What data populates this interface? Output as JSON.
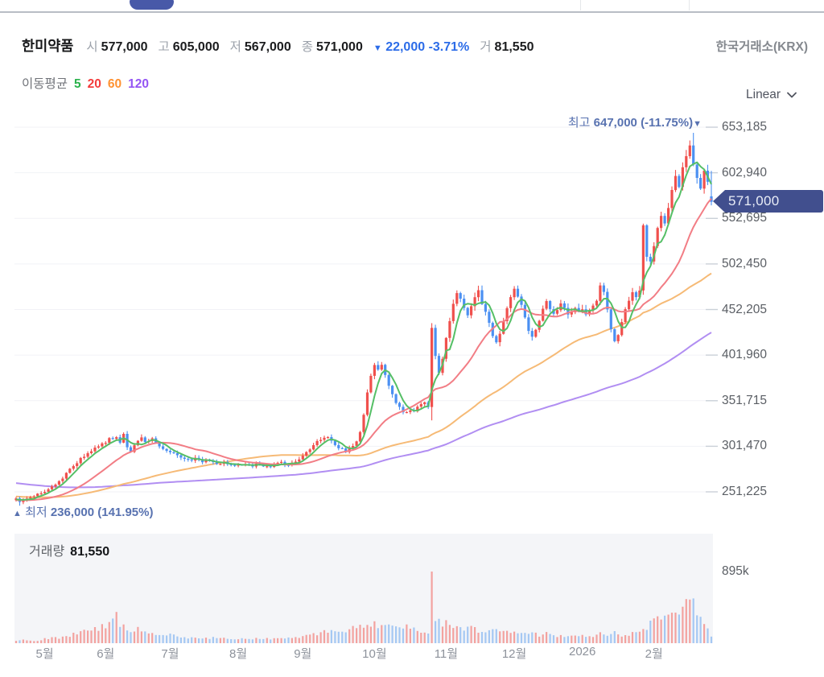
{
  "header": {
    "title": "한미약품",
    "fields": [
      {
        "label": "시",
        "value": "577,000"
      },
      {
        "label": "고",
        "value": "605,000"
      },
      {
        "label": "저",
        "value": "567,000"
      },
      {
        "label": "종",
        "value": "571,000"
      }
    ],
    "change": {
      "arrow": "▼",
      "value": "22,000",
      "percent": "-3.71%"
    },
    "volume_field": {
      "label": "거",
      "value": "81,550"
    },
    "exchange": "한국거래소(KRX)"
  },
  "ma_legend": {
    "label": "이동평균",
    "items": [
      {
        "period": "5",
        "color": "#2bb24c"
      },
      {
        "period": "20",
        "color": "#f43c3c"
      },
      {
        "period": "60",
        "color": "#ff9232"
      },
      {
        "period": "120",
        "color": "#9455f4"
      }
    ]
  },
  "scale_selector": {
    "label": "Linear"
  },
  "annotations": {
    "max": {
      "prefix": "최고",
      "value": "647,000",
      "percent": "(-11.75%)",
      "marker": "▼"
    },
    "min": {
      "marker": "▲",
      "prefix": "최저",
      "value": "236,000",
      "percent": "(141.95%)"
    }
  },
  "y_axis": {
    "ticks": [
      "653,185",
      "602,940",
      "552,695",
      "502,450",
      "452,205",
      "401,960",
      "351,715",
      "301,470",
      "251,225"
    ],
    "current_price": "571,000"
  },
  "volume_panel": {
    "label": "거래량",
    "value": "81,550",
    "axis_label": "895k"
  },
  "chart_data": {
    "type": "candlestick_with_volume",
    "symbol": "한미약품",
    "exchange": "한국거래소(KRX)",
    "scale": "Linear",
    "y_axis_ticks": [
      653185,
      602940,
      552695,
      502450,
      452205,
      401960,
      351715,
      301470,
      251225
    ],
    "current_price": 571000,
    "previous_close": 593000,
    "period_high": {
      "price": 647000,
      "pct_from_current": "-11.75%"
    },
    "period_low": {
      "price": 236000,
      "pct_from_current": "141.95%"
    },
    "last_day": {
      "open": 577000,
      "high": 605000,
      "low": 567000,
      "close": 571000,
      "volume": 81550
    },
    "volume_axis_max_k": 895,
    "days": 195,
    "x_ticks": [
      {
        "label": "5월",
        "day": 8
      },
      {
        "label": "6월",
        "day": 25
      },
      {
        "label": "7월",
        "day": 43
      },
      {
        "label": "8월",
        "day": 62
      },
      {
        "label": "9월",
        "day": 80
      },
      {
        "label": "10월",
        "day": 100
      },
      {
        "label": "11월",
        "day": 120
      },
      {
        "label": "12월",
        "day": 139
      },
      {
        "label": "2026",
        "day": 158
      },
      {
        "label": "2월",
        "day": 178
      }
    ],
    "ma_periods": [
      5,
      20,
      60,
      120
    ],
    "ma_line_colors": {
      "p5": "#55bf66",
      "p20": "#f27d85",
      "p60": "#f6ba76",
      "p120": "#b18ef2"
    },
    "candle_colors": {
      "up": "#f0504d",
      "down": "#4b90f2"
    },
    "volume_colors": {
      "up": "#f2938f",
      "down": "#97c0f2"
    },
    "close_anchors_k": [
      [
        0,
        244
      ],
      [
        1,
        240
      ],
      [
        2,
        243
      ],
      [
        4,
        246
      ],
      [
        6,
        249
      ],
      [
        8,
        252
      ],
      [
        10,
        257
      ],
      [
        12,
        263
      ],
      [
        14,
        271
      ],
      [
        16,
        280
      ],
      [
        18,
        288
      ],
      [
        20,
        294
      ],
      [
        22,
        299
      ],
      [
        24,
        304
      ],
      [
        26,
        309
      ],
      [
        28,
        312
      ],
      [
        29,
        306
      ],
      [
        30,
        314
      ],
      [
        31,
        300
      ],
      [
        32,
        295
      ],
      [
        33,
        302
      ],
      [
        34,
        308
      ],
      [
        35,
        311
      ],
      [
        36,
        306
      ],
      [
        38,
        309
      ],
      [
        40,
        302
      ],
      [
        42,
        297
      ],
      [
        44,
        293
      ],
      [
        46,
        290
      ],
      [
        48,
        286
      ],
      [
        50,
        288
      ],
      [
        52,
        284
      ],
      [
        54,
        286
      ],
      [
        56,
        282
      ],
      [
        58,
        284
      ],
      [
        60,
        281
      ],
      [
        62,
        281
      ],
      [
        64,
        283
      ],
      [
        66,
        280
      ],
      [
        68,
        282
      ],
      [
        70,
        279
      ],
      [
        72,
        281
      ],
      [
        74,
        283
      ],
      [
        76,
        280
      ],
      [
        78,
        284
      ],
      [
        80,
        291
      ],
      [
        82,
        298
      ],
      [
        84,
        306
      ],
      [
        86,
        311
      ],
      [
        87,
        313
      ],
      [
        88,
        308
      ],
      [
        90,
        300
      ],
      [
        92,
        296
      ],
      [
        94,
        303
      ],
      [
        95,
        308
      ],
      [
        96,
        318
      ],
      [
        97,
        335
      ],
      [
        98,
        360
      ],
      [
        99,
        378
      ],
      [
        100,
        390
      ],
      [
        101,
        386
      ],
      [
        102,
        391
      ],
      [
        103,
        381
      ],
      [
        104,
        368
      ],
      [
        105,
        358
      ],
      [
        106,
        350
      ],
      [
        107,
        344
      ],
      [
        108,
        340
      ],
      [
        109,
        338
      ],
      [
        110,
        342
      ],
      [
        111,
        340
      ],
      [
        112,
        344
      ],
      [
        113,
        347
      ],
      [
        114,
        350
      ],
      [
        115,
        345
      ],
      [
        116,
        432
      ],
      [
        117,
        400
      ],
      [
        118,
        382
      ],
      [
        119,
        398
      ],
      [
        120,
        420
      ],
      [
        121,
        440
      ],
      [
        122,
        458
      ],
      [
        123,
        470
      ],
      [
        124,
        463
      ],
      [
        125,
        452
      ],
      [
        126,
        444
      ],
      [
        127,
        455
      ],
      [
        128,
        465
      ],
      [
        129,
        472
      ],
      [
        130,
        460
      ],
      [
        131,
        448
      ],
      [
        132,
        436
      ],
      [
        133,
        424
      ],
      [
        134,
        418
      ],
      [
        135,
        426
      ],
      [
        136,
        438
      ],
      [
        137,
        452
      ],
      [
        138,
        466
      ],
      [
        139,
        476
      ],
      [
        140,
        468
      ],
      [
        141,
        456
      ],
      [
        142,
        444
      ],
      [
        143,
        430
      ],
      [
        144,
        422
      ],
      [
        145,
        432
      ],
      [
        146,
        442
      ],
      [
        147,
        452
      ],
      [
        148,
        460
      ],
      [
        149,
        452
      ],
      [
        150,
        446
      ],
      [
        151,
        452
      ],
      [
        152,
        458
      ],
      [
        153,
        452
      ],
      [
        154,
        446
      ],
      [
        155,
        450
      ],
      [
        156,
        455
      ],
      [
        157,
        450
      ],
      [
        158,
        452
      ],
      [
        159,
        448
      ],
      [
        160,
        452
      ],
      [
        161,
        456
      ],
      [
        162,
        462
      ],
      [
        163,
        478
      ],
      [
        164,
        470
      ],
      [
        165,
        452
      ],
      [
        166,
        432
      ],
      [
        167,
        418
      ],
      [
        168,
        425
      ],
      [
        169,
        440
      ],
      [
        170,
        452
      ],
      [
        171,
        462
      ],
      [
        172,
        472
      ],
      [
        173,
        466
      ],
      [
        174,
        472
      ],
      [
        175,
        545
      ],
      [
        176,
        512
      ],
      [
        177,
        505
      ],
      [
        178,
        522
      ],
      [
        179,
        540
      ],
      [
        180,
        556
      ],
      [
        181,
        548
      ],
      [
        182,
        562
      ],
      [
        183,
        584
      ],
      [
        184,
        600
      ],
      [
        185,
        590
      ],
      [
        186,
        610
      ],
      [
        187,
        622
      ],
      [
        188,
        634
      ],
      [
        189,
        612
      ],
      [
        190,
        598
      ],
      [
        191,
        584
      ],
      [
        192,
        603
      ],
      [
        193,
        593
      ],
      [
        194,
        571
      ]
    ],
    "volume_anchors_k": [
      [
        0,
        25
      ],
      [
        2,
        45
      ],
      [
        4,
        30
      ],
      [
        6,
        35
      ],
      [
        8,
        55
      ],
      [
        10,
        70
      ],
      [
        12,
        60
      ],
      [
        14,
        90
      ],
      [
        16,
        110
      ],
      [
        18,
        130
      ],
      [
        20,
        150
      ],
      [
        22,
        170
      ],
      [
        24,
        200
      ],
      [
        26,
        240
      ],
      [
        28,
        330
      ],
      [
        29,
        240
      ],
      [
        31,
        180
      ],
      [
        33,
        160
      ],
      [
        35,
        170
      ],
      [
        37,
        130
      ],
      [
        39,
        110
      ],
      [
        41,
        120
      ],
      [
        43,
        100
      ],
      [
        45,
        85
      ],
      [
        47,
        75
      ],
      [
        50,
        65
      ],
      [
        53,
        60
      ],
      [
        56,
        70
      ],
      [
        59,
        55
      ],
      [
        62,
        50
      ],
      [
        65,
        55
      ],
      [
        68,
        60
      ],
      [
        71,
        50
      ],
      [
        74,
        55
      ],
      [
        77,
        60
      ],
      [
        80,
        75
      ],
      [
        82,
        95
      ],
      [
        84,
        120
      ],
      [
        86,
        160
      ],
      [
        88,
        150
      ],
      [
        90,
        120
      ],
      [
        92,
        150
      ],
      [
        94,
        180
      ],
      [
        96,
        220
      ],
      [
        98,
        260
      ],
      [
        100,
        240
      ],
      [
        102,
        200
      ],
      [
        104,
        230
      ],
      [
        106,
        190
      ],
      [
        108,
        210
      ],
      [
        110,
        170
      ],
      [
        112,
        150
      ],
      [
        114,
        140
      ],
      [
        115,
        150
      ],
      [
        116,
        890
      ],
      [
        117,
        340
      ],
      [
        118,
        300
      ],
      [
        119,
        260
      ],
      [
        120,
        330
      ],
      [
        121,
        250
      ],
      [
        122,
        235
      ],
      [
        124,
        190
      ],
      [
        126,
        205
      ],
      [
        128,
        165
      ],
      [
        130,
        140
      ],
      [
        132,
        150
      ],
      [
        134,
        165
      ],
      [
        136,
        140
      ],
      [
        138,
        120
      ],
      [
        140,
        115
      ],
      [
        142,
        105
      ],
      [
        144,
        120
      ],
      [
        146,
        100
      ],
      [
        148,
        125
      ],
      [
        150,
        95
      ],
      [
        152,
        85
      ],
      [
        154,
        80
      ],
      [
        156,
        78
      ],
      [
        158,
        85
      ],
      [
        160,
        72
      ],
      [
        162,
        90
      ],
      [
        163,
        130
      ],
      [
        164,
        110
      ],
      [
        165,
        95
      ],
      [
        166,
        120
      ],
      [
        167,
        140
      ],
      [
        168,
        100
      ],
      [
        169,
        90
      ],
      [
        170,
        95
      ],
      [
        171,
        105
      ],
      [
        172,
        115
      ],
      [
        173,
        130
      ],
      [
        174,
        150
      ],
      [
        175,
        170
      ],
      [
        176,
        200
      ],
      [
        177,
        230
      ],
      [
        178,
        260
      ],
      [
        180,
        300
      ],
      [
        182,
        340
      ],
      [
        184,
        390
      ],
      [
        186,
        460
      ],
      [
        187,
        560
      ],
      [
        188,
        520
      ],
      [
        189,
        480
      ],
      [
        190,
        430
      ],
      [
        191,
        310
      ],
      [
        192,
        270
      ],
      [
        193,
        190
      ],
      [
        194,
        82
      ]
    ],
    "prehistory_anchors_k": [
      [
        -120,
        296
      ],
      [
        -100,
        285
      ],
      [
        -80,
        268
      ],
      [
        -60,
        254
      ],
      [
        -40,
        248
      ],
      [
        -20,
        243
      ],
      [
        -10,
        241
      ],
      [
        -1,
        243
      ]
    ]
  }
}
